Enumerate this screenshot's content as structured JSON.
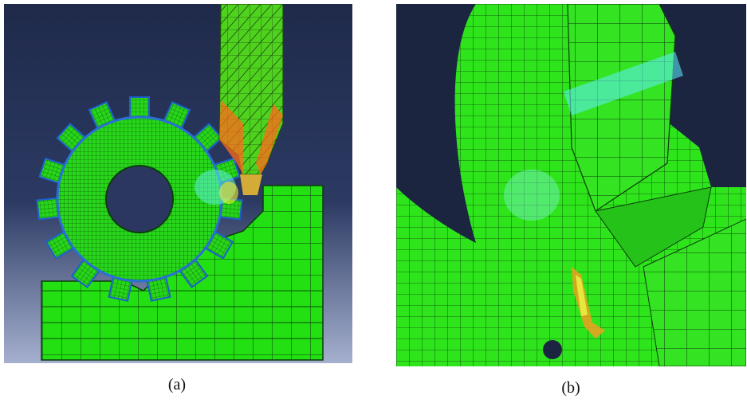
{
  "figure": {
    "panels": [
      {
        "caption": "(a)",
        "description_colors": {
          "background_top": "#1f2a4a",
          "background_bottom": "#9aa6c6",
          "mesh_fill": "#22e012",
          "mesh_line": "#0a3a0a",
          "stress_blue": "#3a7cff",
          "stress_cyan": "#46e8e0",
          "stress_orange": "#ff6a1a",
          "stress_yellow": "#f2f020"
        },
        "icons": [
          "gear-mesh",
          "cutting-tool-mesh",
          "workpiece-block-mesh"
        ]
      },
      {
        "caption": "(b)",
        "description_colors": {
          "background": "#1c2540",
          "mesh_fill": "#2ee51c",
          "mesh_line": "#0c3c0c",
          "stress_cyan": "#5ff0ff",
          "stress_orange": "#ff7a1a",
          "stress_yellow": "#e8f040"
        },
        "icons": [
          "gear-closeup-mesh",
          "tool-tip-mesh",
          "crack-region"
        ]
      }
    ]
  }
}
